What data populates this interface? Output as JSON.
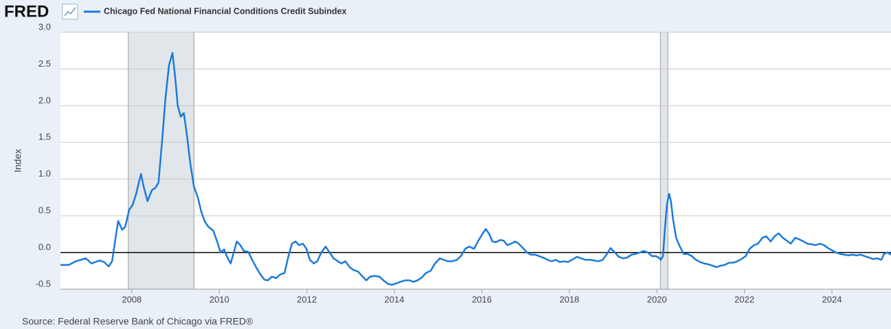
{
  "brand": "FRED",
  "chart_data": {
    "type": "line",
    "series": [
      {
        "name": "Chicago Fed National Financial Conditions Credit Subindex",
        "color": "#1a7ad8",
        "values": [
          -0.17,
          -0.17,
          -0.12,
          -0.08,
          -0.15,
          -0.11,
          -0.13,
          -0.19,
          -0.12,
          0.2,
          0.43,
          0.31,
          0.35,
          0.58,
          0.65,
          0.8,
          1.07,
          0.9,
          0.7,
          0.85,
          0.88,
          0.95,
          1.5,
          2.1,
          2.55,
          2.72,
          2.4,
          2.0,
          1.85,
          1.9,
          1.6,
          1.2,
          0.9,
          0.75,
          0.55,
          0.42,
          0.35,
          0.3,
          0.15,
          0.0,
          0.04,
          -0.05,
          -0.15,
          0.0,
          0.15,
          0.1,
          0.02,
          0.01,
          -0.1,
          -0.2,
          -0.3,
          -0.37,
          -0.38,
          -0.33,
          -0.35,
          -0.3,
          -0.28,
          -0.05,
          0.12,
          0.15,
          0.1,
          0.12,
          0.05,
          -0.1,
          -0.15,
          -0.12,
          0.0,
          0.08,
          0.0,
          -0.08,
          -0.12,
          -0.15,
          -0.12,
          -0.2,
          -0.24,
          -0.26,
          -0.32,
          -0.38,
          -0.33,
          -0.32,
          -0.33,
          -0.38,
          -0.43,
          -0.44,
          -0.42,
          -0.4,
          -0.38,
          -0.38,
          -0.4,
          -0.38,
          -0.34,
          -0.28,
          -0.25,
          -0.15,
          -0.08,
          -0.1,
          -0.12,
          -0.12,
          -0.1,
          -0.05,
          0.05,
          0.08,
          0.05,
          0.15,
          0.25,
          0.32,
          0.25,
          0.15,
          0.14,
          0.17,
          0.16,
          0.1,
          0.12,
          0.15,
          0.12,
          0.06,
          0.0,
          -0.03,
          -0.03,
          -0.05,
          -0.07,
          -0.1,
          -0.12,
          -0.1,
          -0.13,
          -0.12,
          -0.13,
          -0.1,
          -0.06,
          -0.08,
          -0.1,
          -0.1,
          -0.11,
          -0.12,
          -0.1,
          -0.03,
          0.06,
          0.0,
          -0.06,
          -0.08,
          -0.07,
          -0.03,
          -0.02,
          0.0,
          0.02,
          0.0,
          -0.05,
          -0.05,
          -0.07,
          -0.1,
          -0.05,
          0.3,
          0.65,
          0.8,
          0.7,
          0.45,
          0.2,
          0.1,
          -0.02,
          -0.02,
          -0.05,
          -0.1,
          -0.13,
          -0.15,
          -0.16,
          -0.18,
          -0.2,
          -0.18,
          -0.17,
          -0.14,
          -0.14,
          -0.12,
          -0.09,
          -0.05,
          0.05,
          0.1,
          0.12,
          0.2,
          0.22,
          0.15,
          0.22,
          0.26,
          0.2,
          0.16,
          0.12,
          0.2,
          0.18,
          0.15,
          0.12,
          0.11,
          0.1,
          0.12,
          0.1,
          0.06,
          0.03,
          0.0,
          -0.02,
          -0.03,
          -0.04,
          -0.03,
          -0.04,
          -0.03,
          -0.05,
          -0.07,
          -0.09,
          -0.08,
          -0.1,
          -0.02,
          0.0,
          -0.03
        ]
      }
    ],
    "x": [
      2006.37,
      2006.56,
      2006.72,
      2006.95,
      2007.08,
      2007.26,
      2007.37,
      2007.47,
      2007.55,
      2007.63,
      2007.69,
      2007.78,
      2007.85,
      2007.94,
      2008.02,
      2008.1,
      2008.21,
      2008.27,
      2008.36,
      2008.46,
      2008.54,
      2008.61,
      2008.69,
      2008.77,
      2008.85,
      2008.93,
      2008.99,
      2009.05,
      2009.12,
      2009.19,
      2009.26,
      2009.34,
      2009.42,
      2009.51,
      2009.59,
      2009.67,
      2009.75,
      2009.86,
      2009.95,
      2010.03,
      2010.11,
      2010.17,
      2010.26,
      2010.33,
      2010.4,
      2010.48,
      2010.56,
      2010.66,
      2010.75,
      2010.84,
      2010.94,
      2011.03,
      2011.11,
      2011.2,
      2011.3,
      2011.39,
      2011.49,
      2011.58,
      2011.66,
      2011.74,
      2011.82,
      2011.91,
      2011.99,
      2012.07,
      2012.16,
      2012.24,
      2012.33,
      2012.43,
      2012.52,
      2012.61,
      2012.71,
      2012.79,
      2012.88,
      2012.98,
      2013.07,
      2013.17,
      2013.26,
      2013.36,
      2013.44,
      2013.55,
      2013.66,
      2013.75,
      2013.86,
      2013.95,
      2014.05,
      2014.14,
      2014.25,
      2014.34,
      2014.44,
      2014.53,
      2014.63,
      2014.72,
      2014.83,
      2014.93,
      2015.04,
      2015.13,
      2015.22,
      2015.32,
      2015.43,
      2015.52,
      2015.62,
      2015.71,
      2015.82,
      2015.91,
      2016.01,
      2016.09,
      2016.17,
      2016.24,
      2016.32,
      2016.42,
      2016.5,
      2016.58,
      2016.67,
      2016.76,
      2016.84,
      2016.94,
      2017.03,
      2017.12,
      2017.22,
      2017.31,
      2017.4,
      2017.5,
      2017.59,
      2017.69,
      2017.78,
      2017.88,
      2017.97,
      2018.06,
      2018.17,
      2018.27,
      2018.36,
      2018.47,
      2018.57,
      2018.66,
      2018.76,
      2018.85,
      2018.94,
      2019.04,
      2019.13,
      2019.23,
      2019.32,
      2019.42,
      2019.51,
      2019.61,
      2019.7,
      2019.79,
      2019.89,
      2019.98,
      2020.04,
      2020.09,
      2020.14,
      2020.18,
      2020.23,
      2020.28,
      2020.32,
      2020.37,
      2020.44,
      2020.51,
      2020.61,
      2020.7,
      2020.8,
      2020.89,
      2020.99,
      2021.08,
      2021.17,
      2021.27,
      2021.36,
      2021.46,
      2021.55,
      2021.65,
      2021.74,
      2021.84,
      2021.93,
      2022.03,
      2022.12,
      2022.22,
      2022.31,
      2022.41,
      2022.5,
      2022.6,
      2022.69,
      2022.78,
      2022.88,
      2022.97,
      2023.06,
      2023.16,
      2023.25,
      2023.35,
      2023.44,
      2023.54,
      2023.63,
      2023.72,
      2023.82,
      2023.91,
      2024.0,
      2024.09,
      2024.19,
      2024.28,
      2024.38,
      2024.47,
      2024.56,
      2024.66,
      2024.75,
      2024.85,
      2024.94,
      2025.03,
      2025.13,
      2025.19,
      2025.27,
      2025.35
    ],
    "y_label": "Index",
    "xlim": [
      2006.37,
      2025.35
    ],
    "ylim": [
      -0.5,
      3.0
    ],
    "xticks": [
      2008,
      2010,
      2012,
      2014,
      2016,
      2018,
      2020,
      2022,
      2024
    ],
    "yticks": [
      {
        "value": 3,
        "label": "3.0"
      },
      2.5,
      {
        "value": 2,
        "label": "2.0"
      },
      1.5,
      {
        "value": 1,
        "label": "1.0"
      },
      0.5,
      {
        "value": 0,
        "label": "0.0"
      },
      -0.5
    ],
    "grid": true,
    "zero_line": true,
    "recessions": [
      [
        2007.92,
        2009.42
      ],
      [
        2020.08,
        2020.25
      ]
    ],
    "source": "Source: Federal Reserve Bank of Chicago via FRED®"
  }
}
